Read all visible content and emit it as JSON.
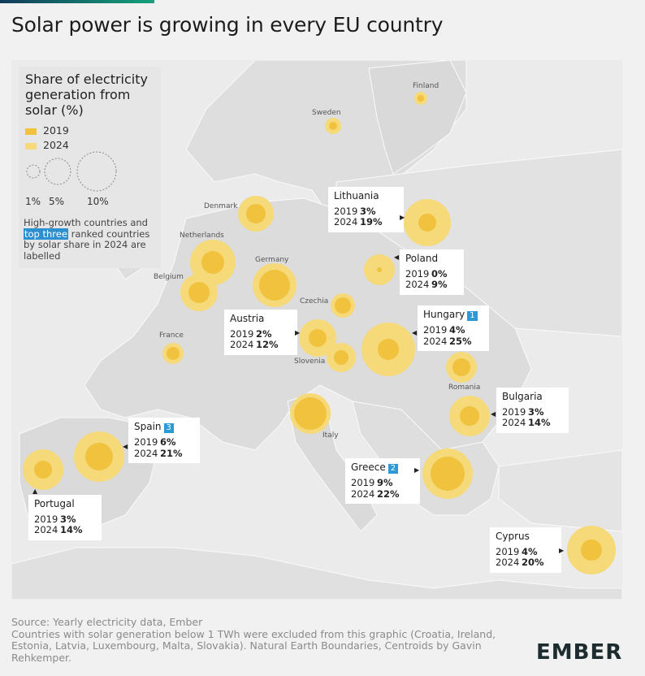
{
  "title": "Solar power is growing in every EU country",
  "colors": {
    "y2019": "#f0c23e",
    "y2024": "#f6d978",
    "rank": "#2c9ad6",
    "land": "#dedede",
    "sea": "#ebebeb"
  },
  "legend": {
    "title": "Share of electricity generation from solar (%)",
    "y2019": "2019",
    "y2024": "2024",
    "sizes": [
      "1%",
      "5%",
      "10%"
    ],
    "note_before": "High-growth countries and",
    "note_highlight": "top three",
    "note_after": "ranked countries by solar share in 2024 are labelled"
  },
  "country_labels": {
    "finland": "Finland",
    "sweden": "Sweden",
    "denmark": "Denmark",
    "netherlands": "Netherlands",
    "belgium": "Belgium",
    "germany": "Germany",
    "czechia": "Czechia",
    "france": "France",
    "slovenia": "Slovenia",
    "romania": "Romania",
    "italy": "Italy"
  },
  "callouts": {
    "lithuania": {
      "name": "Lithuania",
      "y2019": "2019",
      "v2019": "3%",
      "y2024": "2024",
      "v2024": "19%"
    },
    "poland": {
      "name": "Poland",
      "y2019": "2019",
      "v2019": "0%",
      "y2024": "2024",
      "v2024": "9%"
    },
    "hungary": {
      "name": "Hungary",
      "rank": "1",
      "y2019": "2019",
      "v2019": "4%",
      "y2024": "2024",
      "v2024": "25%"
    },
    "austria": {
      "name": "Austria",
      "y2019": "2019",
      "v2019": "2%",
      "y2024": "2024",
      "v2024": "12%"
    },
    "bulgaria": {
      "name": "Bulgaria",
      "y2019": "2019",
      "v2019": "3%",
      "y2024": "2024",
      "v2024": "14%"
    },
    "spain": {
      "name": "Spain",
      "rank": "3",
      "y2019": "2019",
      "v2019": "6%",
      "y2024": "2024",
      "v2024": "21%"
    },
    "greece": {
      "name": "Greece",
      "rank": "2",
      "y2019": "2019",
      "v2019": "9%",
      "y2024": "2024",
      "v2024": "22%"
    },
    "portugal": {
      "name": "Portugal",
      "y2019": "2019",
      "v2019": "3%",
      "y2024": "2024",
      "v2024": "14%"
    },
    "cyprus": {
      "name": "Cyprus",
      "y2019": "2019",
      "v2019": "4%",
      "y2024": "2024",
      "v2024": "20%"
    }
  },
  "source_line1": "Source: Yearly electricity data, Ember",
  "source_line2": "Countries with solar generation below 1 TWh were excluded from this graphic (Croatia, Ireland, Estonia, Latvia, Luxembourg, Malta, Slovakia). Natural Earth Boundaries, Centroids by Gavin Rehkemper.",
  "logo": "EMBER"
}
